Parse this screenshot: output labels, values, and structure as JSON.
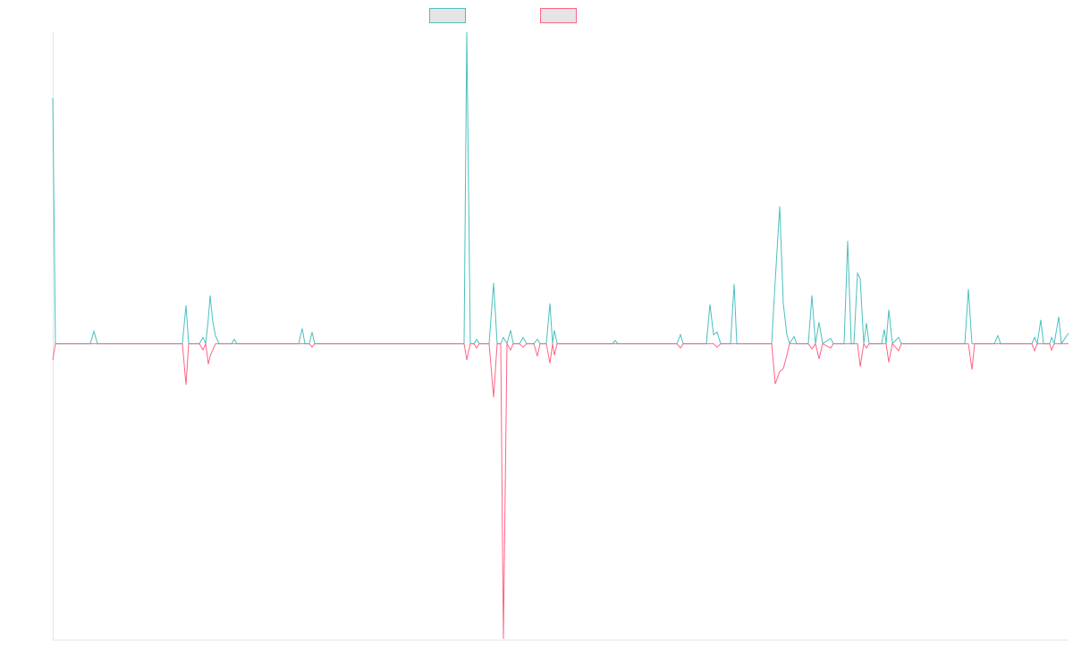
{
  "chart_data": {
    "type": "line",
    "x": [
      0,
      3,
      42,
      46,
      50,
      145,
      149,
      152,
      164,
      168,
      171,
      174,
      176,
      179,
      182,
      186,
      200,
      203,
      206,
      275,
      279,
      282,
      287,
      290,
      293,
      460,
      463,
      467,
      471,
      474,
      477,
      488,
      493,
      497,
      501,
      504,
      508,
      512,
      515,
      522,
      526,
      530,
      538,
      542,
      545,
      552,
      556,
      559,
      561,
      564,
      626,
      629,
      632,
      698,
      702,
      705,
      731,
      735,
      739,
      743,
      747,
      758,
      762,
      765,
      804,
      808,
      813,
      817,
      821,
      824,
      829,
      832,
      845,
      849,
      853,
      857,
      861,
      870,
      873,
      885,
      889,
      893,
      896,
      900,
      903,
      907,
      910,
      913,
      927,
      930,
      932,
      935,
      939,
      946,
      949,
      1020,
      1024,
      1028,
      1031,
      1053,
      1057,
      1060,
      1095,
      1098,
      1101,
      1105,
      1108,
      1115,
      1117,
      1120,
      1125,
      1128,
      1136
    ],
    "series": [
      {
        "color": "#4bc0c0",
        "values": [
          78.8,
          0,
          0,
          4,
          0,
          0,
          12.3,
          0,
          0,
          2,
          0,
          8,
          15.5,
          7,
          2.5,
          0,
          0,
          1.4,
          0,
          0,
          4.9,
          0,
          0,
          3.7,
          0,
          0,
          100,
          0,
          0,
          1.4,
          0,
          0,
          19.5,
          0,
          0,
          2,
          0,
          4.3,
          0,
          0,
          2,
          0,
          0,
          1.4,
          0,
          0,
          12.9,
          0,
          4.3,
          0,
          0,
          1,
          0,
          0,
          2.9,
          0,
          0,
          12.6,
          2.9,
          3.7,
          0,
          0,
          19.2,
          0,
          0,
          20.3,
          44.1,
          12.9,
          2.9,
          0,
          2.3,
          0,
          0,
          15.5,
          0,
          6.9,
          0,
          1.7,
          0,
          0,
          33,
          0,
          0,
          22.6,
          20.9,
          0,
          6.6,
          0,
          0,
          4.6,
          0,
          10.9,
          0,
          2,
          0,
          0,
          17.5,
          0,
          0,
          0,
          2.6,
          0,
          0,
          2,
          0,
          7.7,
          0,
          0,
          2,
          0,
          8.6,
          0,
          3.4
        ]
      },
      {
        "color": "#ff6384",
        "values": [
          -5.2,
          0,
          0,
          0,
          0,
          0,
          -13.2,
          0,
          0,
          -2,
          0,
          -6.6,
          -4,
          -2,
          0,
          0,
          0,
          0,
          0,
          0,
          0,
          0,
          0,
          -1.1,
          0,
          0,
          -5.2,
          0,
          0,
          -1.4,
          0,
          0,
          -17.2,
          0,
          0,
          -94.8,
          0,
          -2,
          0,
          0,
          -1.1,
          0,
          0,
          -4,
          0,
          0,
          -6.3,
          0,
          -3.7,
          0,
          0,
          0,
          0,
          0,
          -1.4,
          0,
          0,
          0,
          0,
          -1.1,
          0,
          0,
          0,
          0,
          0,
          -12.9,
          -8.9,
          -8,
          -3.7,
          0,
          0,
          0,
          0,
          -1.7,
          0,
          -4.9,
          0,
          -1.4,
          0,
          0,
          0,
          0,
          0,
          0,
          -7.4,
          0,
          -1.4,
          0,
          0,
          0,
          0,
          -6,
          0,
          -2.3,
          0,
          0,
          0,
          -8.3,
          0,
          0,
          0,
          0,
          0,
          -2.3,
          0,
          0,
          0,
          0,
          -2,
          0,
          0,
          0,
          0
        ]
      }
    ],
    "xlim": [
      0,
      1136
    ],
    "ylim": [
      -95,
      100
    ]
  }
}
